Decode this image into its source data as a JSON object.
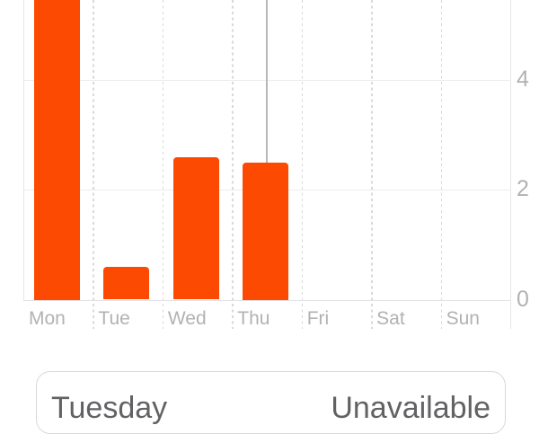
{
  "chart_data": {
    "type": "bar",
    "categories": [
      "Mon",
      "Tue",
      "Wed",
      "Thu",
      "Fri",
      "Sat",
      "Sun"
    ],
    "values": [
      5.5,
      0.6,
      2.6,
      2.5,
      0,
      0,
      0
    ],
    "title": "",
    "xlabel": "",
    "ylabel": "",
    "ylim": [
      0,
      5.5
    ],
    "yticks": [
      0,
      2,
      4
    ],
    "yaxis_position": "right",
    "grid": "horizontal solid lines at ticks, vertical dashed category separators",
    "legend": "none",
    "bar_color": "#FC4A02",
    "monday_bar_clipped_at_top": true,
    "selected_category": "Thu",
    "selection_ruler": true
  },
  "summary_card": {
    "label": "Tuesday",
    "value": "Unavailable"
  },
  "colors": {
    "accent_bar": "#FC4A02",
    "axis_label": "#B2B2B6",
    "gridline": "#EDEDF0",
    "dashed_gridline": "#D9D9DD",
    "selection_ruler": "#B7B7BB",
    "card_border": "#D9D9DD",
    "card_text": "#626265",
    "background": "#FFFFFF"
  }
}
